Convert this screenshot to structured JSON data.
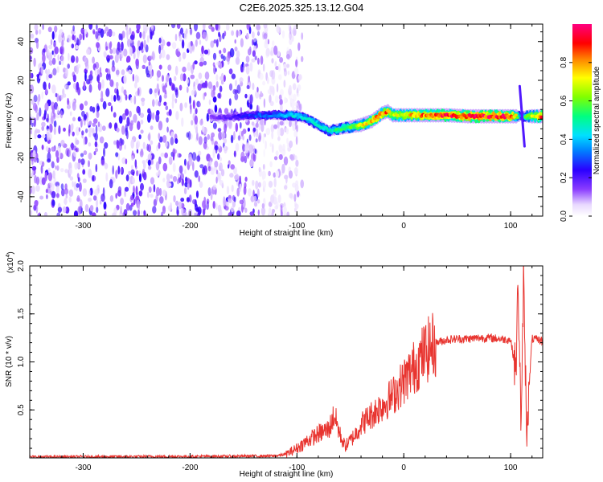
{
  "title": "C2E6.2025.325.13.12.G04",
  "chart_data": [
    {
      "type": "heatmap",
      "xlabel": "Height of straight line (km)",
      "ylabel": "Frequency (Hz)",
      "xlim": [
        -350,
        130
      ],
      "ylim": [
        -50,
        49
      ],
      "x_ticks": [
        -300,
        -200,
        -100,
        0,
        100
      ],
      "y_ticks": [
        -40,
        -20,
        0,
        20,
        40
      ],
      "colorbar": {
        "label": "Normalized spectral amplitude",
        "ticks": [
          "0.0",
          "0.2",
          "0.4",
          "0.6",
          "0.8"
        ],
        "range": [
          0,
          1
        ],
        "colormap": "rainbow (white-violet-blue-cyan-green-yellow-red-magenta)"
      },
      "noise_region_x": [
        -350,
        -110
      ],
      "ridge": {
        "x": [
          -180,
          -160,
          -140,
          -120,
          -110,
          -100,
          -90,
          -80,
          -70,
          -60,
          -50,
          -40,
          -30,
          -20,
          -15,
          -10,
          0,
          20,
          40,
          60,
          80,
          100,
          105,
          110,
          115,
          130
        ],
        "y": [
          1,
          1,
          2,
          2,
          2,
          2,
          0,
          -3,
          -6,
          -5,
          -4,
          -3,
          -1,
          3,
          4,
          2,
          2,
          2,
          2,
          1.5,
          1.5,
          1.5,
          1.5,
          1.5,
          1.5,
          1.5
        ],
        "amplitude": [
          0.15,
          0.2,
          0.3,
          0.35,
          0.4,
          0.45,
          0.45,
          0.5,
          0.45,
          0.55,
          0.6,
          0.7,
          0.8,
          0.85,
          0.85,
          0.7,
          0.75,
          0.85,
          0.9,
          0.92,
          0.93,
          0.93,
          0.7,
          0.3,
          0.6,
          0.9
        ]
      },
      "spike": {
        "x": 110,
        "y_range": [
          -14,
          17
        ]
      }
    },
    {
      "type": "line",
      "xlabel": "Height of straight line (km)",
      "ylabel": "SNR (10 * v/v)",
      "y_multiplier": "(x10",
      "y_multiplier_exp": "4",
      "xlim": [
        -350,
        130
      ],
      "ylim": [
        0,
        20000
      ],
      "x_ticks": [
        -300,
        -200,
        -100,
        0,
        100
      ],
      "y_ticks": [
        "0.5",
        "1.0",
        "1.5",
        "2.0"
      ],
      "y_tick_values": [
        5000,
        10000,
        15000,
        20000
      ],
      "series": [
        {
          "color": "#e8342f",
          "x": [
            -350,
            -200,
            -120,
            -110,
            -100,
            -90,
            -80,
            -70,
            -65,
            -60,
            -55,
            -50,
            -45,
            -40,
            -30,
            -20,
            -10,
            0,
            10,
            20,
            30,
            40,
            50,
            60,
            70,
            80,
            90,
            100,
            105,
            107,
            110,
            112,
            115,
            120,
            130
          ],
          "y": [
            100,
            150,
            200,
            400,
            1000,
            1800,
            2500,
            3000,
            4500,
            2500,
            1200,
            1800,
            2500,
            3500,
            4500,
            5500,
            6500,
            8000,
            9500,
            11000,
            12000,
            12300,
            12400,
            12400,
            12500,
            12500,
            12400,
            12300,
            9000,
            18500,
            2000,
            19000,
            3000,
            12400,
            12200
          ]
        }
      ]
    }
  ]
}
